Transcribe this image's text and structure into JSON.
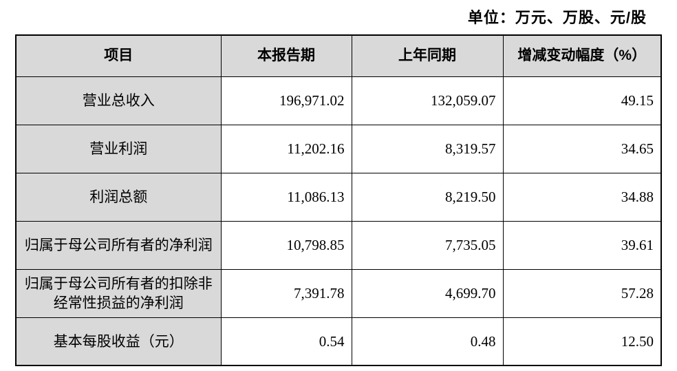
{
  "unit_note": "单位：万元、万股、元/股",
  "table": {
    "headers": {
      "item": "项目",
      "current_period": "本报告期",
      "prior_period": "上年同期",
      "change": "增减变动幅度（%）"
    },
    "rows": [
      {
        "item": "营业总收入",
        "current": "196,971.02",
        "prior": "132,059.07",
        "change": "49.15"
      },
      {
        "item": "营业利润",
        "current": "11,202.16",
        "prior": "8,319.57",
        "change": "34.65"
      },
      {
        "item": "利润总额",
        "current": "11,086.13",
        "prior": "8,219.50",
        "change": "34.88"
      },
      {
        "item": "归属于母公司所有者的净利润",
        "current": "10,798.85",
        "prior": "7,735.05",
        "change": "39.61"
      },
      {
        "item": "归属于母公司所有者的扣除非经常性损益的净利润",
        "current": "7,391.78",
        "prior": "4,699.70",
        "change": "57.28"
      },
      {
        "item": "基本每股收益（元）",
        "current": "0.54",
        "prior": "0.48",
        "change": "12.50"
      }
    ]
  },
  "colors": {
    "header_bg": "#d9d9d9",
    "item_column_bg": "#d9d9d9",
    "border": "#000000",
    "text": "#000000",
    "page_bg": "#ffffff"
  }
}
